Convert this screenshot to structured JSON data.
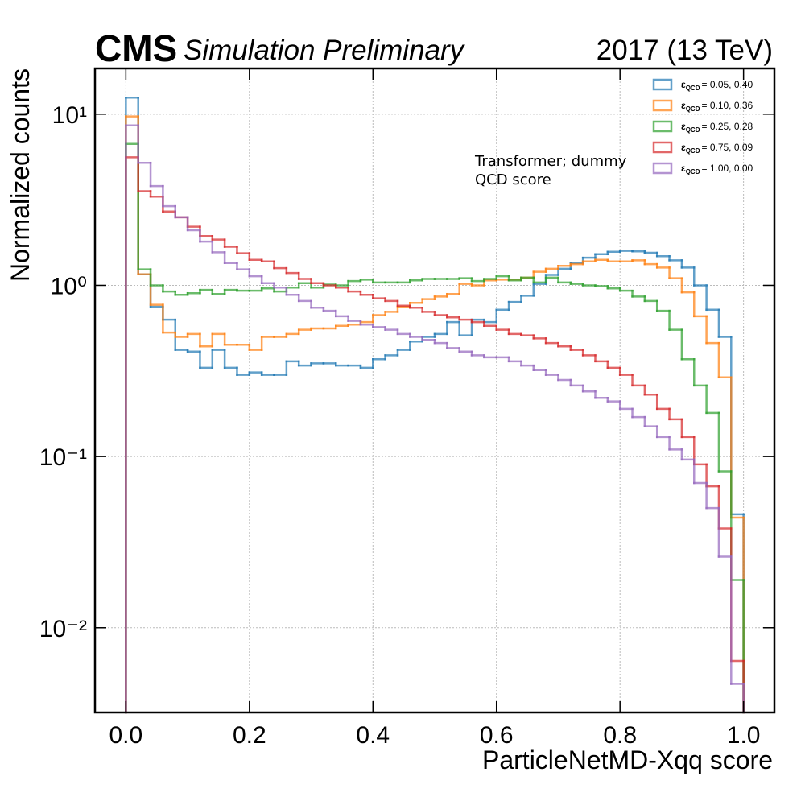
{
  "chart_data": {
    "type": "histogram",
    "experiment": "CMS",
    "status": "Simulation Preliminary",
    "energy_label": "2017 (13 TeV)",
    "xlabel": "ParticleNetMD-Xqq score",
    "ylabel": "Normalized counts",
    "annotation": [
      "Transformer; dummy",
      "QCD score"
    ],
    "log_y": true,
    "grid": true,
    "legend_position": "upper right",
    "legend_label": {
      "symbol": "ε",
      "subscript": "QCD"
    },
    "xlim": [
      -0.05,
      1.05
    ],
    "ylim": [
      0.0032,
      18.5
    ],
    "xticks": [
      {
        "value": 0,
        "label": "0.0"
      },
      0.2,
      0.4,
      0.6,
      0.8,
      {
        "value": 1,
        "label": "1.0"
      }
    ],
    "yticks": [
      {
        "value": 0.01,
        "label": "10⁻²"
      },
      {
        "value": 0.1,
        "label": "10⁻¹"
      },
      {
        "value": 1,
        "label": "10⁰"
      },
      {
        "value": 10,
        "label": "10¹"
      }
    ],
    "bins": [
      0,
      0.02,
      0.04,
      0.06,
      0.08,
      0.1,
      0.12,
      0.14,
      0.16,
      0.18,
      0.2,
      0.22,
      0.24,
      0.26,
      0.28,
      0.3,
      0.32,
      0.34,
      0.36,
      0.38,
      0.4,
      0.42,
      0.44,
      0.46,
      0.48,
      0.5,
      0.52,
      0.54,
      0.56,
      0.58,
      0.6,
      0.62,
      0.64,
      0.66,
      0.68,
      0.7,
      0.72,
      0.74,
      0.76,
      0.78,
      0.8,
      0.82,
      0.84,
      0.86,
      0.88,
      0.9,
      0.92,
      0.94,
      0.96,
      0.98,
      1
    ],
    "series": [
      {
        "name": "= 0.05, 0.40",
        "color": "#1f77b4",
        "values": [
          12.5,
          1.16,
          0.75,
          0.63,
          0.42,
          0.41,
          0.33,
          0.42,
          0.33,
          0.3,
          0.31,
          0.3,
          0.3,
          0.36,
          0.34,
          0.35,
          0.35,
          0.34,
          0.34,
          0.33,
          0.37,
          0.39,
          0.42,
          0.47,
          0.5,
          0.52,
          0.61,
          0.51,
          0.63,
          0.61,
          0.72,
          0.8,
          0.87,
          1.02,
          1.15,
          1.25,
          1.35,
          1.45,
          1.52,
          1.57,
          1.59,
          1.58,
          1.55,
          1.48,
          1.4,
          1.27,
          1.0,
          0.72,
          0.5,
          0.046
        ]
      },
      {
        "name": "= 0.10, 0.36",
        "color": "#ff7f0e",
        "values": [
          9.7,
          1.16,
          0.77,
          0.53,
          0.5,
          0.52,
          0.44,
          0.52,
          0.45,
          0.45,
          0.42,
          0.5,
          0.5,
          0.52,
          0.55,
          0.56,
          0.56,
          0.58,
          0.59,
          0.61,
          0.67,
          0.7,
          0.75,
          0.79,
          0.83,
          0.86,
          0.89,
          1.02,
          1.0,
          1.07,
          1.08,
          1.08,
          1.11,
          1.2,
          1.25,
          1.3,
          1.33,
          1.38,
          1.41,
          1.38,
          1.38,
          1.4,
          1.33,
          1.27,
          1.1,
          0.91,
          0.66,
          0.46,
          0.29,
          0.044
        ]
      },
      {
        "name": "= 0.25, 0.28",
        "color": "#2ca02c",
        "values": [
          6.7,
          1.24,
          1.0,
          0.92,
          0.88,
          0.9,
          0.94,
          0.89,
          0.94,
          0.93,
          0.93,
          0.96,
          0.92,
          0.97,
          1.03,
          0.97,
          1.01,
          1.0,
          1.06,
          1.08,
          1.04,
          1.04,
          1.04,
          1.07,
          1.09,
          1.09,
          1.09,
          1.1,
          1.06,
          1.09,
          1.13,
          1.07,
          1.11,
          1.04,
          1.11,
          1.04,
          1.02,
          1.0,
          0.99,
          0.96,
          0.93,
          0.86,
          0.81,
          0.71,
          0.55,
          0.37,
          0.26,
          0.18,
          0.082,
          0.019
        ]
      },
      {
        "name": "= 0.75, 0.09",
        "color": "#d62728",
        "values": [
          5.6,
          3.55,
          3.3,
          2.7,
          2.5,
          2.2,
          1.94,
          1.85,
          1.68,
          1.54,
          1.41,
          1.38,
          1.26,
          1.18,
          1.09,
          1.03,
          1.0,
          0.97,
          0.92,
          0.88,
          0.84,
          0.81,
          0.76,
          0.74,
          0.7,
          0.67,
          0.65,
          0.63,
          0.61,
          0.58,
          0.55,
          0.52,
          0.51,
          0.49,
          0.46,
          0.44,
          0.42,
          0.39,
          0.36,
          0.33,
          0.3,
          0.26,
          0.23,
          0.19,
          0.165,
          0.13,
          0.09,
          0.067,
          0.038,
          0.0064
        ]
      },
      {
        "name": "= 1.00, 0.00",
        "color": "#9467bd",
        "values": [
          8.6,
          5.2,
          3.8,
          2.9,
          2.5,
          2.1,
          1.8,
          1.56,
          1.35,
          1.24,
          1.13,
          1.03,
          0.97,
          0.88,
          0.81,
          0.74,
          0.71,
          0.66,
          0.62,
          0.59,
          0.57,
          0.55,
          0.52,
          0.5,
          0.48,
          0.46,
          0.43,
          0.41,
          0.39,
          0.38,
          0.38,
          0.36,
          0.34,
          0.32,
          0.3,
          0.28,
          0.26,
          0.24,
          0.22,
          0.21,
          0.19,
          0.17,
          0.15,
          0.13,
          0.11,
          0.096,
          0.07,
          0.05,
          0.026,
          0.0047
        ]
      }
    ]
  }
}
